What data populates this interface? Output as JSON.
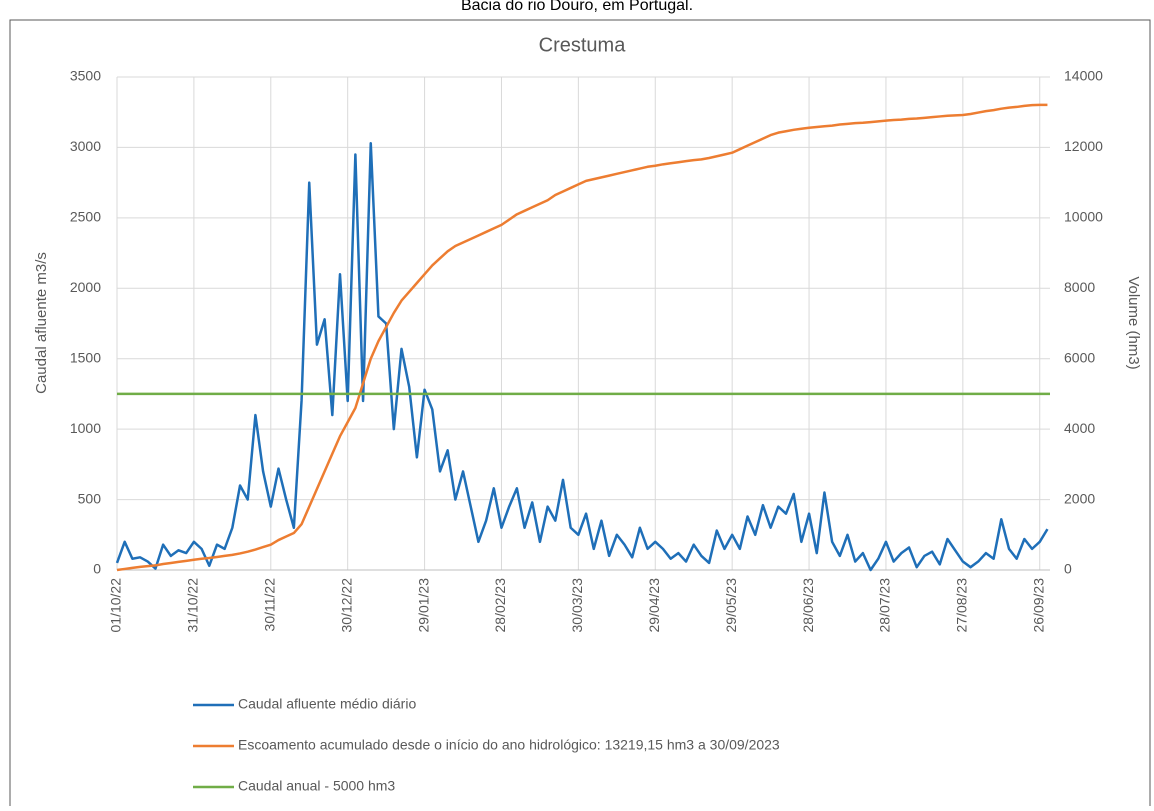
{
  "page_header": "Bacia do rio Douro, em Portugal.",
  "chart_data": {
    "type": "line",
    "title": "Crestuma",
    "y_label": "Caudal afluente m3/s",
    "y2_label": "Volume (hm3)",
    "x": [
      "01/10/22",
      "04/10/22",
      "07/10/22",
      "10/10/22",
      "13/10/22",
      "16/10/22",
      "19/10/22",
      "22/10/22",
      "25/10/22",
      "28/10/22",
      "31/10/22",
      "03/11/22",
      "06/11/22",
      "09/11/22",
      "12/11/22",
      "15/11/22",
      "18/11/22",
      "21/11/22",
      "24/11/22",
      "27/11/22",
      "30/11/22",
      "03/12/22",
      "06/12/22",
      "09/12/22",
      "12/12/22",
      "15/12/22",
      "18/12/22",
      "21/12/22",
      "24/12/22",
      "27/12/22",
      "30/12/22",
      "02/01/23",
      "05/01/23",
      "08/01/23",
      "11/01/23",
      "14/01/23",
      "17/01/23",
      "20/01/23",
      "23/01/23",
      "26/01/23",
      "29/01/23",
      "01/02/23",
      "04/02/23",
      "07/02/23",
      "10/02/23",
      "13/02/23",
      "16/02/23",
      "19/02/23",
      "22/02/23",
      "25/02/23",
      "28/02/23",
      "03/03/23",
      "06/03/23",
      "09/03/23",
      "12/03/23",
      "15/03/23",
      "18/03/23",
      "21/03/23",
      "24/03/23",
      "27/03/23",
      "30/03/23",
      "02/04/23",
      "05/04/23",
      "08/04/23",
      "11/04/23",
      "14/04/23",
      "17/04/23",
      "20/04/23",
      "23/04/23",
      "26/04/23",
      "29/04/23",
      "02/05/23",
      "05/05/23",
      "08/05/23",
      "11/05/23",
      "14/05/23",
      "17/05/23",
      "20/05/23",
      "23/05/23",
      "26/05/23",
      "29/05/23",
      "01/06/23",
      "04/06/23",
      "07/06/23",
      "10/06/23",
      "13/06/23",
      "16/06/23",
      "19/06/23",
      "22/06/23",
      "25/06/23",
      "28/06/23",
      "01/07/23",
      "04/07/23",
      "07/07/23",
      "10/07/23",
      "13/07/23",
      "16/07/23",
      "19/07/23",
      "22/07/23",
      "25/07/23",
      "28/07/23",
      "31/07/23",
      "03/08/23",
      "06/08/23",
      "09/08/23",
      "12/08/23",
      "15/08/23",
      "18/08/23",
      "21/08/23",
      "24/08/23",
      "27/08/23",
      "30/08/23",
      "02/09/23",
      "05/09/23",
      "08/09/23",
      "11/09/23",
      "14/09/23",
      "17/09/23",
      "20/09/23",
      "23/09/23",
      "26/09/23",
      "29/09/23"
    ],
    "series": [
      {
        "name": "Caudal afluente médio diário",
        "color": "#1f6fb8",
        "values": [
          50,
          200,
          80,
          90,
          60,
          10,
          180,
          100,
          140,
          120,
          200,
          150,
          30,
          180,
          150,
          300,
          600,
          500,
          1100,
          700,
          450,
          720,
          500,
          300,
          1200,
          2750,
          1600,
          1780,
          1100,
          2100,
          1200,
          2950,
          1200,
          3030,
          1800,
          1750,
          1000,
          1570,
          1300,
          800,
          1280,
          1140,
          700,
          850,
          500,
          700,
          450,
          200,
          350,
          580,
          300,
          450,
          580,
          300,
          480,
          200,
          450,
          350,
          640,
          300,
          250,
          400,
          150,
          350,
          100,
          250,
          180,
          90,
          300,
          150,
          200,
          150,
          80,
          120,
          60,
          180,
          100,
          50,
          280,
          150,
          250,
          150,
          380,
          250,
          460,
          300,
          450,
          400,
          540,
          200,
          400,
          120,
          550,
          200,
          100,
          250,
          60,
          120,
          0,
          80,
          200,
          60,
          120,
          160,
          20,
          100,
          130,
          40,
          220,
          140,
          60,
          20,
          60,
          120,
          80,
          360,
          150,
          80,
          220,
          150,
          200,
          290
        ]
      },
      {
        "name": "Escoamento acumulado desde o início do ano hidrológico: 13219,15 hm3 a 30/09/2023",
        "color": "#ed7d31",
        "axis": "y2",
        "values": [
          0,
          30,
          60,
          90,
          110,
          130,
          170,
          200,
          230,
          260,
          290,
          320,
          340,
          370,
          400,
          430,
          470,
          520,
          580,
          650,
          720,
          850,
          950,
          1050,
          1300,
          1800,
          2300,
          2800,
          3300,
          3800,
          4200,
          4600,
          5300,
          6000,
          6500,
          6900,
          7300,
          7650,
          7900,
          8150,
          8400,
          8650,
          8850,
          9050,
          9200,
          9300,
          9400,
          9500,
          9600,
          9700,
          9800,
          9950,
          10100,
          10200,
          10300,
          10400,
          10500,
          10650,
          10750,
          10850,
          10950,
          11050,
          11100,
          11150,
          11200,
          11250,
          11300,
          11350,
          11400,
          11450,
          11480,
          11520,
          11550,
          11580,
          11610,
          11640,
          11660,
          11700,
          11750,
          11800,
          11850,
          11950,
          12050,
          12150,
          12250,
          12350,
          12420,
          12460,
          12500,
          12530,
          12560,
          12580,
          12600,
          12620,
          12650,
          12670,
          12690,
          12700,
          12720,
          12740,
          12760,
          12780,
          12790,
          12810,
          12820,
          12840,
          12860,
          12880,
          12900,
          12910,
          12920,
          12950,
          12990,
          13030,
          13060,
          13100,
          13130,
          13150,
          13180,
          13200,
          13210,
          13210
        ]
      },
      {
        "name": "Caudal anual - 5000 hm3",
        "color": "#70ad47",
        "x": [
          "01/10/22",
          "30/09/23"
        ],
        "values": [
          1250,
          1250
        ]
      }
    ],
    "xlim": [
      "01/10/22",
      "30/09/23"
    ],
    "xticks": [
      "01/10/22",
      "31/10/22",
      "30/11/22",
      "30/12/22",
      "29/01/23",
      "28/02/23",
      "30/03/23",
      "29/04/23",
      "29/05/23",
      "28/06/23",
      "28/07/23",
      "27/08/23",
      "26/09/23"
    ],
    "ylim": [
      0,
      3500
    ],
    "yticks": [
      0,
      500,
      1000,
      1500,
      2000,
      2500,
      3000,
      3500
    ],
    "y2lim": [
      0,
      14000
    ],
    "y2ticks": [
      0,
      2000,
      4000,
      6000,
      8000,
      10000,
      12000,
      14000
    ],
    "grid": true,
    "legend": "bottom"
  }
}
